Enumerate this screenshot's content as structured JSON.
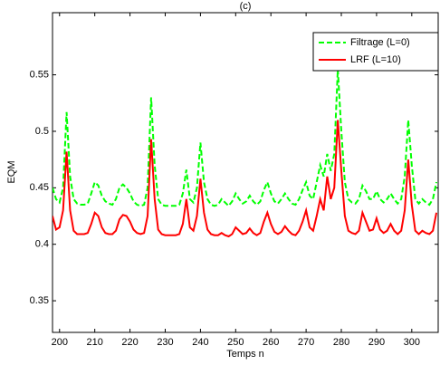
{
  "chart_data": {
    "type": "line",
    "title": "(c)",
    "xlabel": "Temps n",
    "ylabel": "EQM",
    "x": [
      198,
      199,
      200,
      201,
      202,
      203,
      204,
      205,
      206,
      207,
      208,
      209,
      210,
      211,
      212,
      213,
      214,
      215,
      216,
      217,
      218,
      219,
      220,
      221,
      222,
      223,
      224,
      225,
      226,
      227,
      228,
      229,
      230,
      231,
      232,
      233,
      234,
      235,
      236,
      237,
      238,
      239,
      240,
      241,
      242,
      243,
      244,
      245,
      246,
      247,
      248,
      249,
      250,
      251,
      252,
      253,
      254,
      255,
      256,
      257,
      258,
      259,
      260,
      261,
      262,
      263,
      264,
      265,
      266,
      267,
      268,
      269,
      270,
      271,
      272,
      273,
      274,
      275,
      276,
      277,
      278,
      279,
      280,
      281,
      282,
      283,
      284,
      285,
      286,
      287,
      288,
      289,
      290,
      291,
      292,
      293,
      294,
      295,
      296,
      297,
      298,
      299,
      300,
      301,
      302,
      303,
      304,
      305,
      306,
      307
    ],
    "series": [
      {
        "name": "Filtrage (L=0)",
        "color": "#00ff00",
        "linestyle": "--",
        "values": [
          0.45,
          0.44,
          0.437,
          0.45,
          0.517,
          0.46,
          0.44,
          0.436,
          0.435,
          0.435,
          0.436,
          0.445,
          0.455,
          0.452,
          0.443,
          0.438,
          0.436,
          0.435,
          0.44,
          0.45,
          0.453,
          0.45,
          0.445,
          0.438,
          0.435,
          0.434,
          0.435,
          0.45,
          0.53,
          0.47,
          0.44,
          0.435,
          0.434,
          0.434,
          0.434,
          0.434,
          0.435,
          0.445,
          0.466,
          0.44,
          0.437,
          0.45,
          0.49,
          0.455,
          0.44,
          0.435,
          0.434,
          0.435,
          0.44,
          0.437,
          0.434,
          0.438,
          0.445,
          0.44,
          0.436,
          0.438,
          0.443,
          0.438,
          0.435,
          0.438,
          0.448,
          0.455,
          0.445,
          0.438,
          0.436,
          0.44,
          0.445,
          0.44,
          0.436,
          0.435,
          0.44,
          0.448,
          0.455,
          0.443,
          0.44,
          0.455,
          0.47,
          0.46,
          0.48,
          0.465,
          0.48,
          0.555,
          0.5,
          0.455,
          0.44,
          0.437,
          0.436,
          0.44,
          0.452,
          0.447,
          0.44,
          0.44,
          0.447,
          0.44,
          0.437,
          0.44,
          0.445,
          0.44,
          0.436,
          0.44,
          0.46,
          0.51,
          0.47,
          0.44,
          0.436,
          0.44,
          0.437,
          0.435,
          0.44,
          0.455
        ]
      },
      {
        "name": "LRF (L=10)",
        "color": "#ff0000",
        "linestyle": "-",
        "values": [
          0.425,
          0.413,
          0.415,
          0.43,
          0.482,
          0.43,
          0.412,
          0.409,
          0.409,
          0.409,
          0.41,
          0.418,
          0.428,
          0.425,
          0.415,
          0.41,
          0.409,
          0.409,
          0.412,
          0.422,
          0.426,
          0.425,
          0.42,
          0.413,
          0.41,
          0.409,
          0.41,
          0.425,
          0.493,
          0.44,
          0.413,
          0.409,
          0.408,
          0.408,
          0.408,
          0.408,
          0.409,
          0.418,
          0.44,
          0.415,
          0.412,
          0.425,
          0.458,
          0.428,
          0.413,
          0.409,
          0.408,
          0.408,
          0.41,
          0.408,
          0.407,
          0.409,
          0.415,
          0.412,
          0.409,
          0.41,
          0.414,
          0.41,
          0.408,
          0.41,
          0.42,
          0.428,
          0.418,
          0.411,
          0.409,
          0.411,
          0.416,
          0.412,
          0.409,
          0.408,
          0.412,
          0.42,
          0.43,
          0.415,
          0.412,
          0.425,
          0.44,
          0.43,
          0.46,
          0.44,
          0.45,
          0.51,
          0.465,
          0.425,
          0.412,
          0.41,
          0.409,
          0.412,
          0.428,
          0.42,
          0.412,
          0.413,
          0.423,
          0.413,
          0.41,
          0.412,
          0.418,
          0.412,
          0.409,
          0.412,
          0.43,
          0.475,
          0.435,
          0.412,
          0.409,
          0.412,
          0.41,
          0.409,
          0.412,
          0.428
        ]
      }
    ],
    "xlim": [
      198,
      307.5
    ],
    "ylim": [
      0.322,
      0.605
    ],
    "xticks": [
      200,
      210,
      220,
      230,
      240,
      250,
      260,
      270,
      280,
      290,
      300
    ],
    "yticks": [
      0.35,
      0.4,
      0.45,
      0.5,
      0.55
    ],
    "legend": "northeast"
  }
}
